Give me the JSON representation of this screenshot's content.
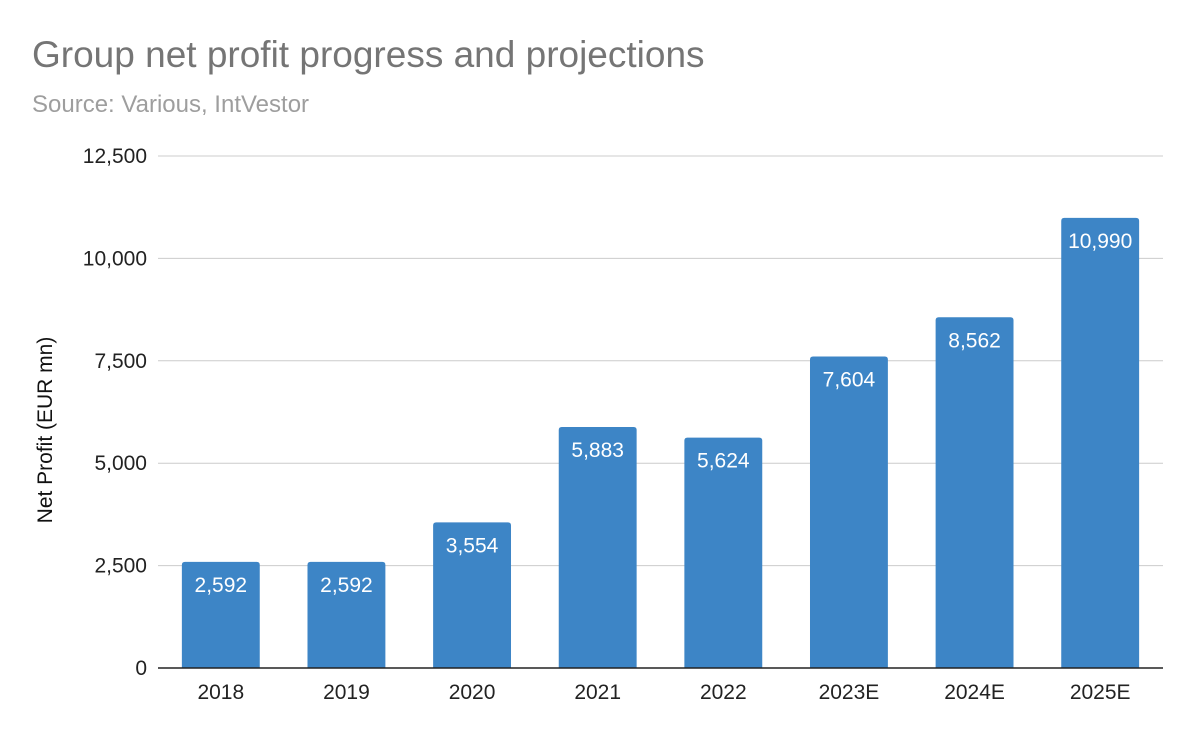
{
  "chart_data": {
    "type": "bar",
    "title": "Group net profit progress and projections",
    "subtitle": "Source: Various, IntVestor",
    "xlabel": "",
    "ylabel": "Net Profit (EUR mn)",
    "categories": [
      "2018",
      "2019",
      "2020",
      "2021",
      "2022",
      "2023E",
      "2024E",
      "2025E"
    ],
    "values": [
      2592,
      2592,
      3554,
      5883,
      5624,
      7604,
      8562,
      10990
    ],
    "data_labels": [
      "2,592",
      "2,592",
      "3,554",
      "5,883",
      "5,624",
      "7,604",
      "8,562",
      "10,990"
    ],
    "ylim": [
      0,
      12500
    ],
    "yticks": [
      0,
      2500,
      5000,
      7500,
      10000,
      12500
    ],
    "ytick_labels": [
      "0",
      "2,500",
      "5,000",
      "7,500",
      "10,000",
      "12,500"
    ],
    "grid": true,
    "legend": "none",
    "bar_color": "#3d85c6"
  }
}
